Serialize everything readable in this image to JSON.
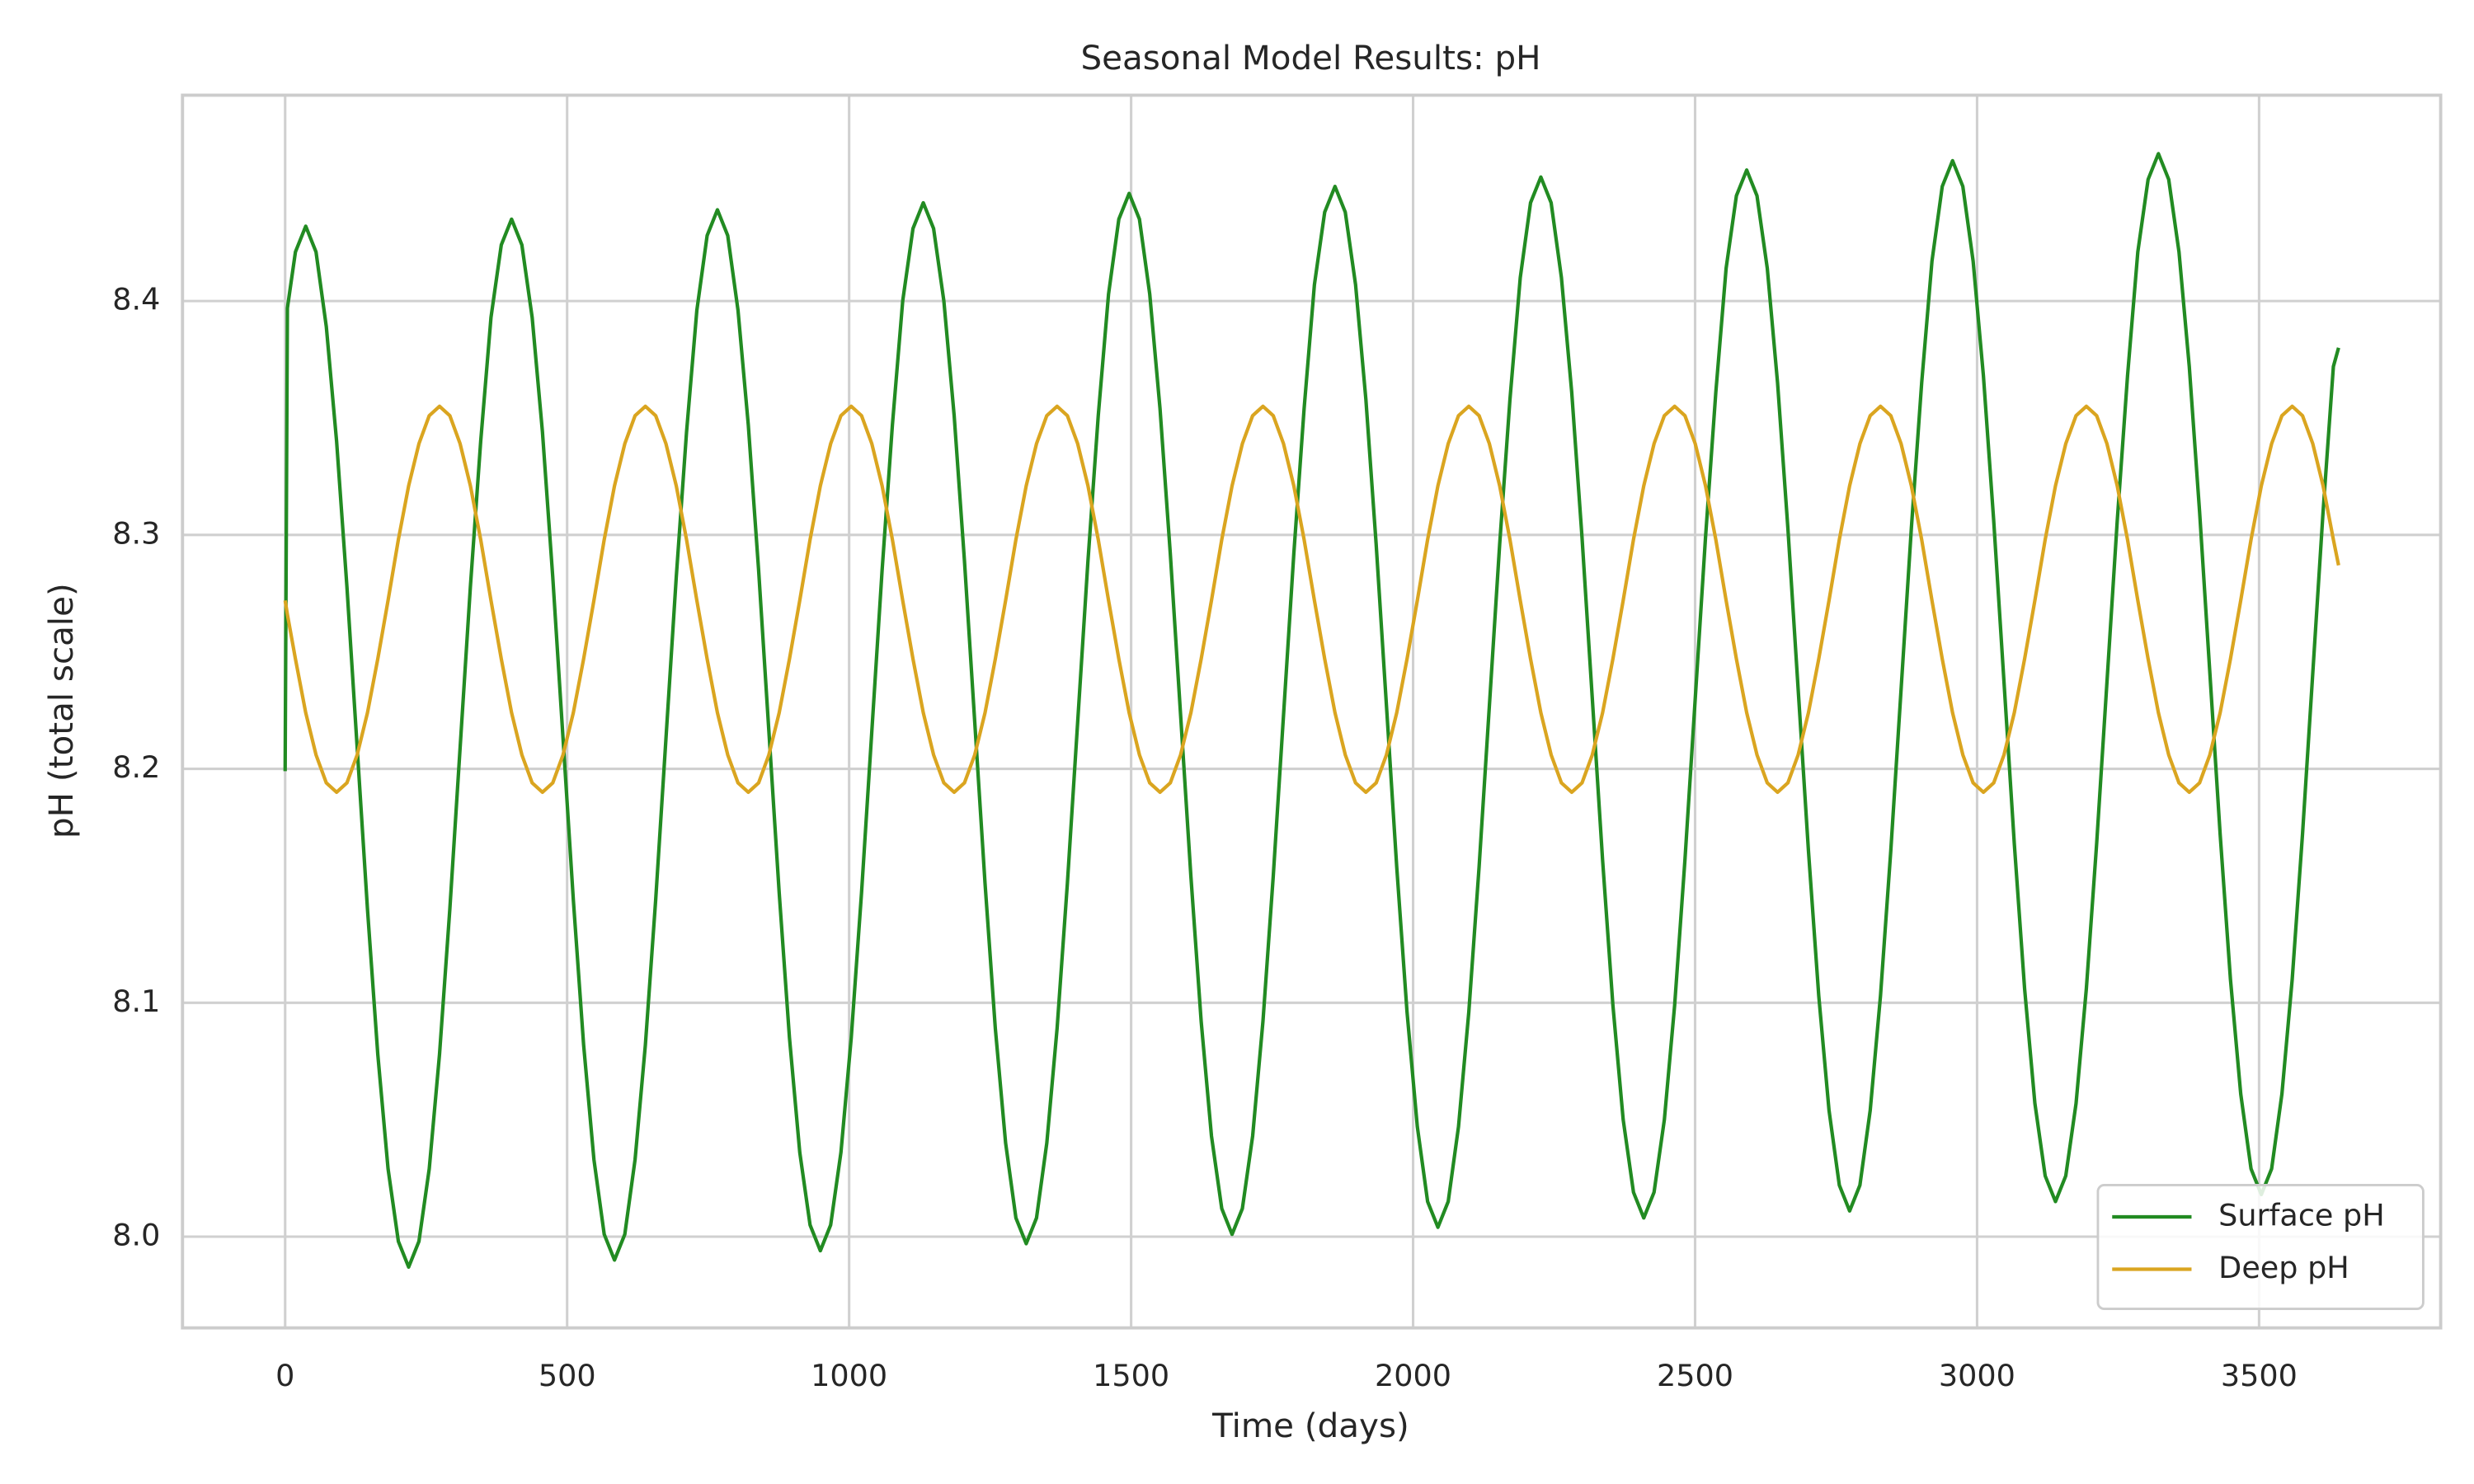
{
  "chart_data": {
    "type": "line",
    "title": "Seasonal Model Results: pH",
    "xlabel": "Time (days)",
    "ylabel": "pH (total scale)",
    "x": [
      0,
      4,
      18.25,
      36.5,
      54.75,
      73,
      91.25,
      109.5,
      127.75,
      146,
      164.25,
      182.5,
      200.75,
      219,
      237.25,
      255.5,
      273.75,
      292,
      310.25,
      328.5,
      346.75,
      365,
      383.25,
      401.5,
      419.75,
      438,
      456.25,
      474.5,
      492.75,
      511,
      529.25,
      547.5,
      565.75,
      584,
      602.25,
      620.5,
      638.75,
      657,
      675.25,
      693.5,
      711.75,
      730,
      748.25,
      766.5,
      784.75,
      803,
      821.25,
      839.5,
      857.75,
      876,
      894.25,
      912.5,
      930.75,
      949,
      967.25,
      985.5,
      1003.75,
      1022,
      1040.25,
      1058.5,
      1076.75,
      1095,
      1113.25,
      1131.5,
      1149.75,
      1168,
      1186.25,
      1204.5,
      1222.75,
      1241,
      1259.25,
      1277.5,
      1295.75,
      1314,
      1332.25,
      1350.5,
      1368.75,
      1387,
      1405.25,
      1423.5,
      1441.75,
      1460,
      1478.25,
      1496.5,
      1514.75,
      1533,
      1551.25,
      1569.5,
      1587.75,
      1606,
      1624.25,
      1642.5,
      1660.75,
      1679,
      1697.25,
      1715.5,
      1733.75,
      1752,
      1770.25,
      1788.5,
      1806.75,
      1825,
      1843.25,
      1861.5,
      1879.75,
      1898,
      1916.25,
      1934.5,
      1952.75,
      1971,
      1989.25,
      2007.5,
      2025.75,
      2044,
      2062.25,
      2080.5,
      2098.75,
      2117,
      2135.25,
      2153.5,
      2171.75,
      2190,
      2208.25,
      2226.5,
      2244.75,
      2263,
      2281.25,
      2299.5,
      2317.75,
      2336,
      2354.25,
      2372.5,
      2390.75,
      2409,
      2427.25,
      2445.5,
      2463.75,
      2482,
      2500.25,
      2518.5,
      2536.75,
      2555,
      2573.25,
      2591.5,
      2609.75,
      2628,
      2646.25,
      2664.5,
      2682.75,
      2701,
      2719.25,
      2737.5,
      2755.75,
      2774,
      2792.25,
      2810.5,
      2828.75,
      2847,
      2865.25,
      2883.5,
      2901.75,
      2920,
      2938.25,
      2956.5,
      2974.75,
      2993,
      3011.25,
      3029.5,
      3047.75,
      3066,
      3084.25,
      3102.5,
      3120.75,
      3139,
      3157.25,
      3175.5,
      3193.75,
      3212,
      3230.25,
      3248.5,
      3266.75,
      3285,
      3303.25,
      3321.5,
      3339.75,
      3358,
      3376.25,
      3394.5,
      3412.75,
      3431,
      3449.25,
      3467.5,
      3485.75,
      3504,
      3522.25,
      3540.5,
      3558.75,
      3577,
      3595.25,
      3613.5,
      3631.75,
      3641
    ],
    "series": [
      {
        "name": "Surface pH",
        "color": "#228b22",
        "values": [
          8.199,
          8.397,
          8.421,
          8.432,
          8.421,
          8.389,
          8.34,
          8.278,
          8.209,
          8.14,
          8.078,
          8.029,
          7.998,
          7.987,
          7.998,
          8.029,
          8.078,
          8.14,
          8.209,
          8.278,
          8.34,
          8.393,
          8.424,
          8.435,
          8.424,
          8.393,
          8.344,
          8.282,
          8.213,
          8.144,
          8.082,
          8.033,
          8.001,
          7.99,
          8.001,
          8.033,
          8.082,
          8.144,
          8.213,
          8.282,
          8.344,
          8.396,
          8.428,
          8.439,
          8.428,
          8.396,
          8.347,
          8.285,
          8.216,
          8.147,
          8.085,
          8.036,
          8.005,
          7.994,
          8.005,
          8.036,
          8.085,
          8.147,
          8.216,
          8.285,
          8.347,
          8.4,
          8.431,
          8.442,
          8.431,
          8.4,
          8.351,
          8.289,
          8.22,
          8.151,
          8.089,
          8.04,
          8.008,
          7.997,
          8.008,
          8.04,
          8.089,
          8.151,
          8.22,
          8.289,
          8.351,
          8.403,
          8.435,
          8.446,
          8.435,
          8.403,
          8.354,
          8.292,
          8.223,
          8.154,
          8.092,
          8.043,
          8.012,
          8.001,
          8.012,
          8.043,
          8.092,
          8.154,
          8.223,
          8.292,
          8.354,
          8.407,
          8.438,
          8.449,
          8.438,
          8.407,
          8.358,
          8.296,
          8.227,
          8.158,
          8.096,
          8.047,
          8.015,
          8.004,
          8.015,
          8.047,
          8.096,
          8.158,
          8.227,
          8.296,
          8.358,
          8.41,
          8.442,
          8.453,
          8.442,
          8.41,
          8.361,
          8.299,
          8.23,
          8.161,
          8.099,
          8.05,
          8.019,
          8.008,
          8.019,
          8.05,
          8.099,
          8.161,
          8.23,
          8.299,
          8.361,
          8.414,
          8.445,
          8.456,
          8.445,
          8.414,
          8.365,
          8.303,
          8.234,
          8.165,
          8.103,
          8.054,
          8.022,
          8.011,
          8.022,
          8.054,
          8.103,
          8.165,
          8.234,
          8.303,
          8.365,
          8.417,
          8.449,
          8.46,
          8.449,
          8.417,
          8.368,
          8.306,
          8.237,
          8.168,
          8.106,
          8.057,
          8.026,
          8.015,
          8.026,
          8.057,
          8.106,
          8.168,
          8.237,
          8.306,
          8.368,
          8.421,
          8.452,
          8.463,
          8.452,
          8.421,
          8.372,
          8.31,
          8.241,
          8.172,
          8.11,
          8.061,
          8.029,
          8.018,
          8.029,
          8.061,
          8.11,
          8.172,
          8.241,
          8.31,
          8.372,
          8.38
        ]
      },
      {
        "name": "Deep pH",
        "color": "#daa520",
        "values": [
          8.272,
          8.266,
          8.247,
          8.224,
          8.206,
          8.194,
          8.19,
          8.194,
          8.206,
          8.224,
          8.247,
          8.272,
          8.298,
          8.321,
          8.339,
          8.351,
          8.355,
          8.351,
          8.339,
          8.321,
          8.298,
          8.272,
          8.247,
          8.224,
          8.206,
          8.194,
          8.19,
          8.194,
          8.206,
          8.224,
          8.247,
          8.272,
          8.298,
          8.321,
          8.339,
          8.351,
          8.355,
          8.351,
          8.339,
          8.321,
          8.298,
          8.272,
          8.247,
          8.224,
          8.206,
          8.194,
          8.19,
          8.194,
          8.206,
          8.224,
          8.247,
          8.272,
          8.298,
          8.321,
          8.339,
          8.351,
          8.355,
          8.351,
          8.339,
          8.321,
          8.298,
          8.272,
          8.247,
          8.224,
          8.206,
          8.194,
          8.19,
          8.194,
          8.206,
          8.224,
          8.247,
          8.272,
          8.298,
          8.321,
          8.339,
          8.351,
          8.355,
          8.351,
          8.339,
          8.321,
          8.298,
          8.272,
          8.247,
          8.224,
          8.206,
          8.194,
          8.19,
          8.194,
          8.206,
          8.224,
          8.247,
          8.272,
          8.298,
          8.321,
          8.339,
          8.351,
          8.355,
          8.351,
          8.339,
          8.321,
          8.298,
          8.272,
          8.247,
          8.224,
          8.206,
          8.194,
          8.19,
          8.194,
          8.206,
          8.224,
          8.247,
          8.272,
          8.298,
          8.321,
          8.339,
          8.351,
          8.355,
          8.351,
          8.339,
          8.321,
          8.298,
          8.272,
          8.247,
          8.224,
          8.206,
          8.194,
          8.19,
          8.194,
          8.206,
          8.224,
          8.247,
          8.272,
          8.298,
          8.321,
          8.339,
          8.351,
          8.355,
          8.351,
          8.339,
          8.321,
          8.298,
          8.272,
          8.247,
          8.224,
          8.206,
          8.194,
          8.19,
          8.194,
          8.206,
          8.224,
          8.247,
          8.272,
          8.298,
          8.321,
          8.339,
          8.351,
          8.355,
          8.351,
          8.339,
          8.321,
          8.298,
          8.272,
          8.247,
          8.224,
          8.206,
          8.194,
          8.19,
          8.194,
          8.206,
          8.224,
          8.247,
          8.272,
          8.298,
          8.321,
          8.339,
          8.351,
          8.355,
          8.351,
          8.339,
          8.321,
          8.298,
          8.272,
          8.247,
          8.224,
          8.206,
          8.194,
          8.19,
          8.194,
          8.206,
          8.224,
          8.247,
          8.272,
          8.298,
          8.321,
          8.339,
          8.351,
          8.355,
          8.351,
          8.339,
          8.321,
          8.298,
          8.287
        ]
      }
    ],
    "xlim": [
      -182,
      3822
    ],
    "xticks": [
      0,
      500,
      1000,
      1500,
      2000,
      2500,
      3000,
      3500
    ],
    "ylim": [
      7.961,
      8.488
    ],
    "yticks": [
      {
        "value": 8,
        "label": "8.0"
      },
      8.1,
      8.2,
      8.3,
      8.4
    ],
    "grid": true,
    "legend": "lower right"
  }
}
